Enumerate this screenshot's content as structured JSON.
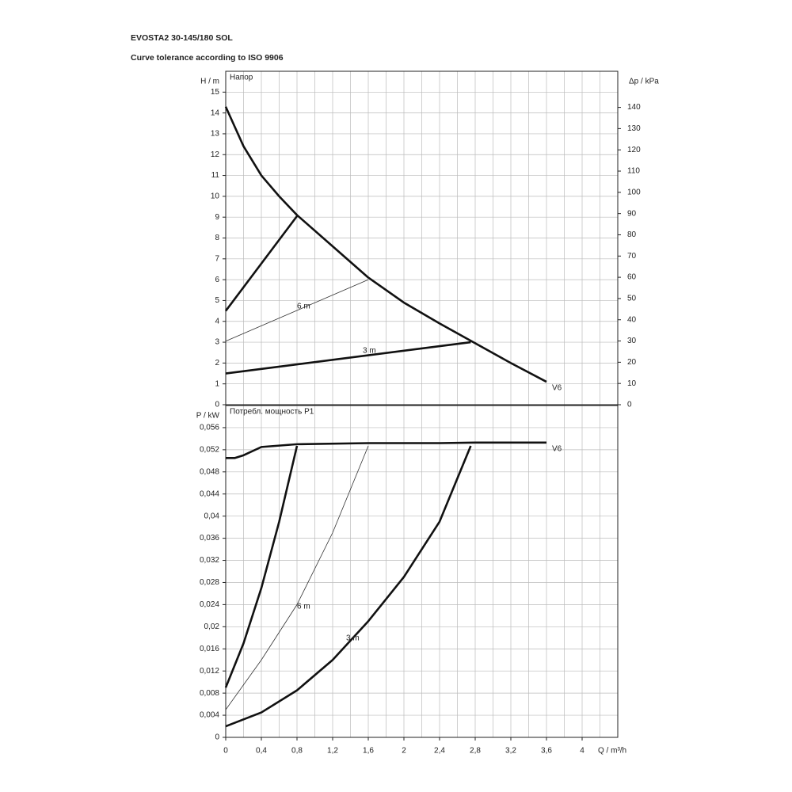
{
  "header": {
    "title": "EVOSTA2 30-145/180 SOL",
    "subtitle": "Curve tolerance according to ISO 9906"
  },
  "chart_data": [
    {
      "type": "line",
      "title": "Напор",
      "ylabel": "H / m",
      "y2label": "Δp / kPa",
      "xlim": [
        0,
        4.4
      ],
      "ylim": [
        0,
        16
      ],
      "y2lim": [
        0,
        157
      ],
      "grid": true,
      "xticks": [
        0,
        0.2,
        0.4,
        0.6,
        0.8,
        1,
        1.2,
        1.4,
        1.6,
        1.8,
        2,
        2.2,
        2.4,
        2.6,
        2.8,
        3,
        3.2,
        3.4,
        3.6,
        3.8,
        4,
        4.2,
        4.4
      ],
      "yticks": [
        0,
        1,
        2,
        3,
        4,
        5,
        6,
        7,
        8,
        9,
        10,
        11,
        12,
        13,
        14,
        15
      ],
      "y2ticks": [
        0,
        10,
        20,
        30,
        40,
        50,
        60,
        70,
        80,
        90,
        100,
        110,
        120,
        130,
        140
      ],
      "series": [
        {
          "name": "V6",
          "color": "#111111",
          "linewidth": 2.6,
          "x": [
            0,
            0.2,
            0.4,
            0.6,
            0.8,
            1.2,
            1.6,
            2.0,
            2.4,
            2.8,
            3.2,
            3.6
          ],
          "values": [
            14.3,
            12.4,
            11,
            10,
            9.1,
            7.6,
            6.1,
            4.9,
            3.9,
            2.95,
            2.0,
            1.1
          ]
        },
        {
          "color": "#111111",
          "linewidth": 2.6,
          "x": [
            0,
            0.8
          ],
          "values": [
            4.5,
            9.05
          ]
        },
        {
          "name": "6 m",
          "color": "#333333",
          "linewidth": 0.8,
          "x": [
            0,
            1.6
          ],
          "values": [
            3.05,
            6.0
          ]
        },
        {
          "name": "3 m",
          "color": "#111111",
          "linewidth": 2.6,
          "x": [
            0,
            2.75
          ],
          "values": [
            1.5,
            3.0
          ]
        }
      ]
    },
    {
      "type": "line",
      "title": "Потребл. мощность P1",
      "ylabel": "P / kW",
      "xlabel": "Q / m³/h",
      "xlim": [
        0,
        4.4
      ],
      "ylim": [
        0,
        0.06
      ],
      "grid": true,
      "xticks": [
        0,
        {
          "value": 0.4,
          "label": "0,4"
        },
        {
          "value": 0.8,
          "label": "0,8"
        },
        {
          "value": 1.2,
          "label": "1,2"
        },
        {
          "value": 1.6,
          "label": "1,6"
        },
        2,
        {
          "value": 2.4,
          "label": "2,4"
        },
        {
          "value": 2.8,
          "label": "2,8"
        },
        {
          "value": 3.2,
          "label": "3,2"
        },
        {
          "value": 3.6,
          "label": "3,6"
        },
        4
      ],
      "xminor": [
        0.2,
        0.6,
        1,
        1.4,
        1.8,
        2.2,
        2.6,
        3,
        3.4,
        3.8,
        4.2,
        4.4
      ],
      "yticks": [
        0,
        {
          "value": 0.004,
          "label": "0,004"
        },
        {
          "value": 0.008,
          "label": "0,008"
        },
        {
          "value": 0.012,
          "label": "0,012"
        },
        {
          "value": 0.016,
          "label": "0,016"
        },
        {
          "value": 0.02,
          "label": "0,02"
        },
        {
          "value": 0.024,
          "label": "0,024"
        },
        {
          "value": 0.028,
          "label": "0,028"
        },
        {
          "value": 0.032,
          "label": "0,032"
        },
        {
          "value": 0.036,
          "label": "0,036"
        },
        {
          "value": 0.04,
          "label": "0,04"
        },
        {
          "value": 0.044,
          "label": "0,044"
        },
        {
          "value": 0.048,
          "label": "0,048"
        },
        {
          "value": 0.052,
          "label": "0,052"
        },
        {
          "value": 0.056,
          "label": "0,056"
        }
      ],
      "series": [
        {
          "name": "V6",
          "color": "#111111",
          "linewidth": 2.6,
          "x": [
            0,
            0.1,
            0.2,
            0.4,
            0.8,
            1.6,
            2.4,
            2.8,
            3.6
          ],
          "values": [
            0.0505,
            0.0505,
            0.051,
            0.0525,
            0.053,
            0.0532,
            0.0532,
            0.0533,
            0.0533
          ]
        },
        {
          "color": "#111111",
          "linewidth": 2.6,
          "x": [
            0,
            0.2,
            0.4,
            0.6,
            0.8
          ],
          "values": [
            0.009,
            0.017,
            0.027,
            0.039,
            0.0527
          ]
        },
        {
          "name": "6 m",
          "color": "#333333",
          "linewidth": 0.8,
          "x": [
            0,
            0.4,
            0.8,
            1.2,
            1.6
          ],
          "values": [
            0.005,
            0.014,
            0.024,
            0.037,
            0.0527
          ]
        },
        {
          "name": "3 m",
          "color": "#111111",
          "linewidth": 2.6,
          "x": [
            0,
            0.4,
            0.8,
            1.2,
            1.6,
            2.0,
            2.4,
            2.75
          ],
          "values": [
            0.002,
            0.0045,
            0.0085,
            0.014,
            0.021,
            0.029,
            0.039,
            0.0527
          ]
        }
      ]
    }
  ]
}
